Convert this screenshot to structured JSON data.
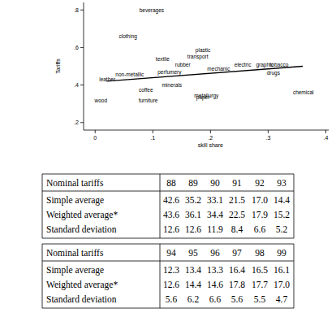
{
  "chart_data": {
    "type": "scatter",
    "x_label": "skill share",
    "y_label": "Tariffs",
    "xlim": [
      -0.02,
      0.405
    ],
    "ylim": [
      0.16,
      0.84
    ],
    "xticks": [
      0,
      {
        "value": 0.1,
        "label": ".1"
      },
      {
        "value": 0.2,
        "label": ".2"
      },
      {
        "value": 0.3,
        "label": ".3"
      },
      {
        "value": 0.4,
        "label": ".4"
      }
    ],
    "yticks": [
      {
        "value": 0.2,
        "label": ".2"
      },
      {
        "value": 0.4,
        "label": ".4"
      },
      {
        "value": 0.6,
        "label": ".6"
      },
      {
        "value": 0.8,
        "label": ".8"
      }
    ],
    "grid": false,
    "series": [
      {
        "type": "scatter",
        "marker": "label",
        "labels": [
          "beverages",
          "clothing",
          "plastic",
          "transport",
          "textile",
          "rubber",
          "non-metallic",
          "perfumery",
          "mechanic",
          "electric",
          "graphic",
          "tobacco",
          "drugs",
          "leather",
          "minerals",
          "coffee",
          "paper",
          "metallurgy",
          "chemical",
          "wood",
          "furniture"
        ],
        "x": [
          0.098,
          0.057,
          0.187,
          0.178,
          0.117,
          0.152,
          0.06,
          0.129,
          0.214,
          0.256,
          0.294,
          0.319,
          0.309,
          0.021,
          0.133,
          0.088,
          0.187,
          0.193,
          0.361,
          0.01,
          0.092
        ],
        "values": [
          0.8,
          0.66,
          0.585,
          0.55,
          0.54,
          0.51,
          0.456,
          0.47,
          0.485,
          0.51,
          0.51,
          0.51,
          0.465,
          0.43,
          0.4,
          0.375,
          0.335,
          0.345,
          0.36,
          0.32,
          0.32
        ]
      },
      {
        "type": "line",
        "line_style": "solid",
        "color": "#000000",
        "x": [
          0.02,
          0.36
        ],
        "values": [
          0.42,
          0.5
        ]
      }
    ]
  },
  "tables": [
    {
      "header": [
        "Nominal tariffs",
        "88",
        "89",
        "90",
        "91",
        "92",
        "93"
      ],
      "rows": [
        [
          "Simple average",
          "42.6",
          "35.2",
          "33.1",
          "21.5",
          "17.0",
          "14.4"
        ],
        [
          "Weighted average*",
          "43.6",
          "36.1",
          "34.4",
          "22.5",
          "17.9",
          "15.2"
        ],
        [
          "Standard deviation",
          "12.6",
          "12.6",
          "11.9",
          "8.4",
          "6.6",
          "5.2"
        ]
      ]
    },
    {
      "header": [
        "Nominal tariffs",
        "94",
        "95",
        "96",
        "97",
        "98",
        "99"
      ],
      "rows": [
        [
          "Simple average",
          "12.3",
          "13.4",
          "13.3",
          "16.4",
          "16.5",
          "16.1"
        ],
        [
          "Weighted average*",
          "12.6",
          "14.4",
          "14.6",
          "17.8",
          "17.7",
          "17.0"
        ],
        [
          "Standard deviation",
          "5.6",
          "6.2",
          "6.6",
          "5.6",
          "5.5",
          "4.7"
        ]
      ]
    }
  ]
}
